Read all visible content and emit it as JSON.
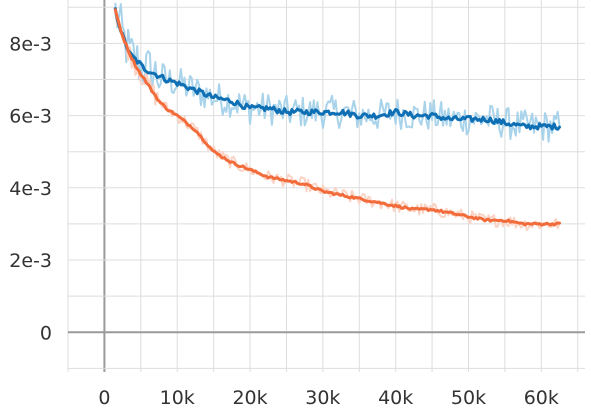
{
  "chart_data": {
    "type": "line",
    "title": "",
    "xlabel": "",
    "ylabel": "",
    "xlim": [
      -5000,
      66000
    ],
    "ylim": [
      -0.0011,
      0.0092
    ],
    "x_ticks": [
      0,
      10000,
      20000,
      30000,
      40000,
      50000,
      60000
    ],
    "x_tick_labels": [
      "0",
      "10k",
      "20k",
      "30k",
      "40k",
      "50k",
      "60k"
    ],
    "y_ticks": [
      0,
      0.002,
      0.004,
      0.006,
      0.008
    ],
    "y_tick_labels": [
      "0",
      "2e-3",
      "4e-3",
      "6e-3",
      "8e-3"
    ],
    "grid": true,
    "legend": false,
    "series": [
      {
        "color": "#0f6fb4",
        "raw_color": "#a9d3ea",
        "x": [
          1500,
          2500,
          3500,
          4500,
          5500,
          6500,
          7500,
          8500,
          10000,
          12500,
          15000,
          17500,
          20000,
          22500,
          25000,
          27500,
          30000,
          32500,
          35000,
          37500,
          40000,
          42500,
          45000,
          47500,
          50000,
          52500,
          55000,
          57500,
          60000,
          62500
        ],
        "values": [
          0.0089,
          0.0082,
          0.0077,
          0.0075,
          0.0073,
          0.0072,
          0.0071,
          0.007,
          0.0069,
          0.0067,
          0.0065,
          0.0064,
          0.0062,
          0.0062,
          0.0061,
          0.0061,
          0.0061,
          0.0061,
          0.006,
          0.006,
          0.0061,
          0.006,
          0.006,
          0.0059,
          0.0059,
          0.0059,
          0.0058,
          0.0057,
          0.0057,
          0.0057
        ]
      },
      {
        "color": "#f26b3a",
        "raw_color": "#fbd3c4",
        "x": [
          1500,
          2500,
          3500,
          4500,
          5500,
          6500,
          7500,
          8500,
          10000,
          12500,
          15000,
          17500,
          20000,
          22500,
          25000,
          27500,
          30000,
          32500,
          35000,
          37500,
          40000,
          42500,
          45000,
          47500,
          50000,
          52500,
          55000,
          57500,
          60000,
          62500
        ],
        "values": [
          0.0089,
          0.0082,
          0.0077,
          0.0073,
          0.007,
          0.0067,
          0.0064,
          0.0062,
          0.006,
          0.0056,
          0.005,
          0.0047,
          0.0045,
          0.0043,
          0.0042,
          0.0041,
          0.0039,
          0.0038,
          0.0037,
          0.0036,
          0.0035,
          0.0034,
          0.0034,
          0.0033,
          0.0032,
          0.0031,
          0.0031,
          0.003,
          0.003,
          0.003
        ]
      }
    ]
  }
}
